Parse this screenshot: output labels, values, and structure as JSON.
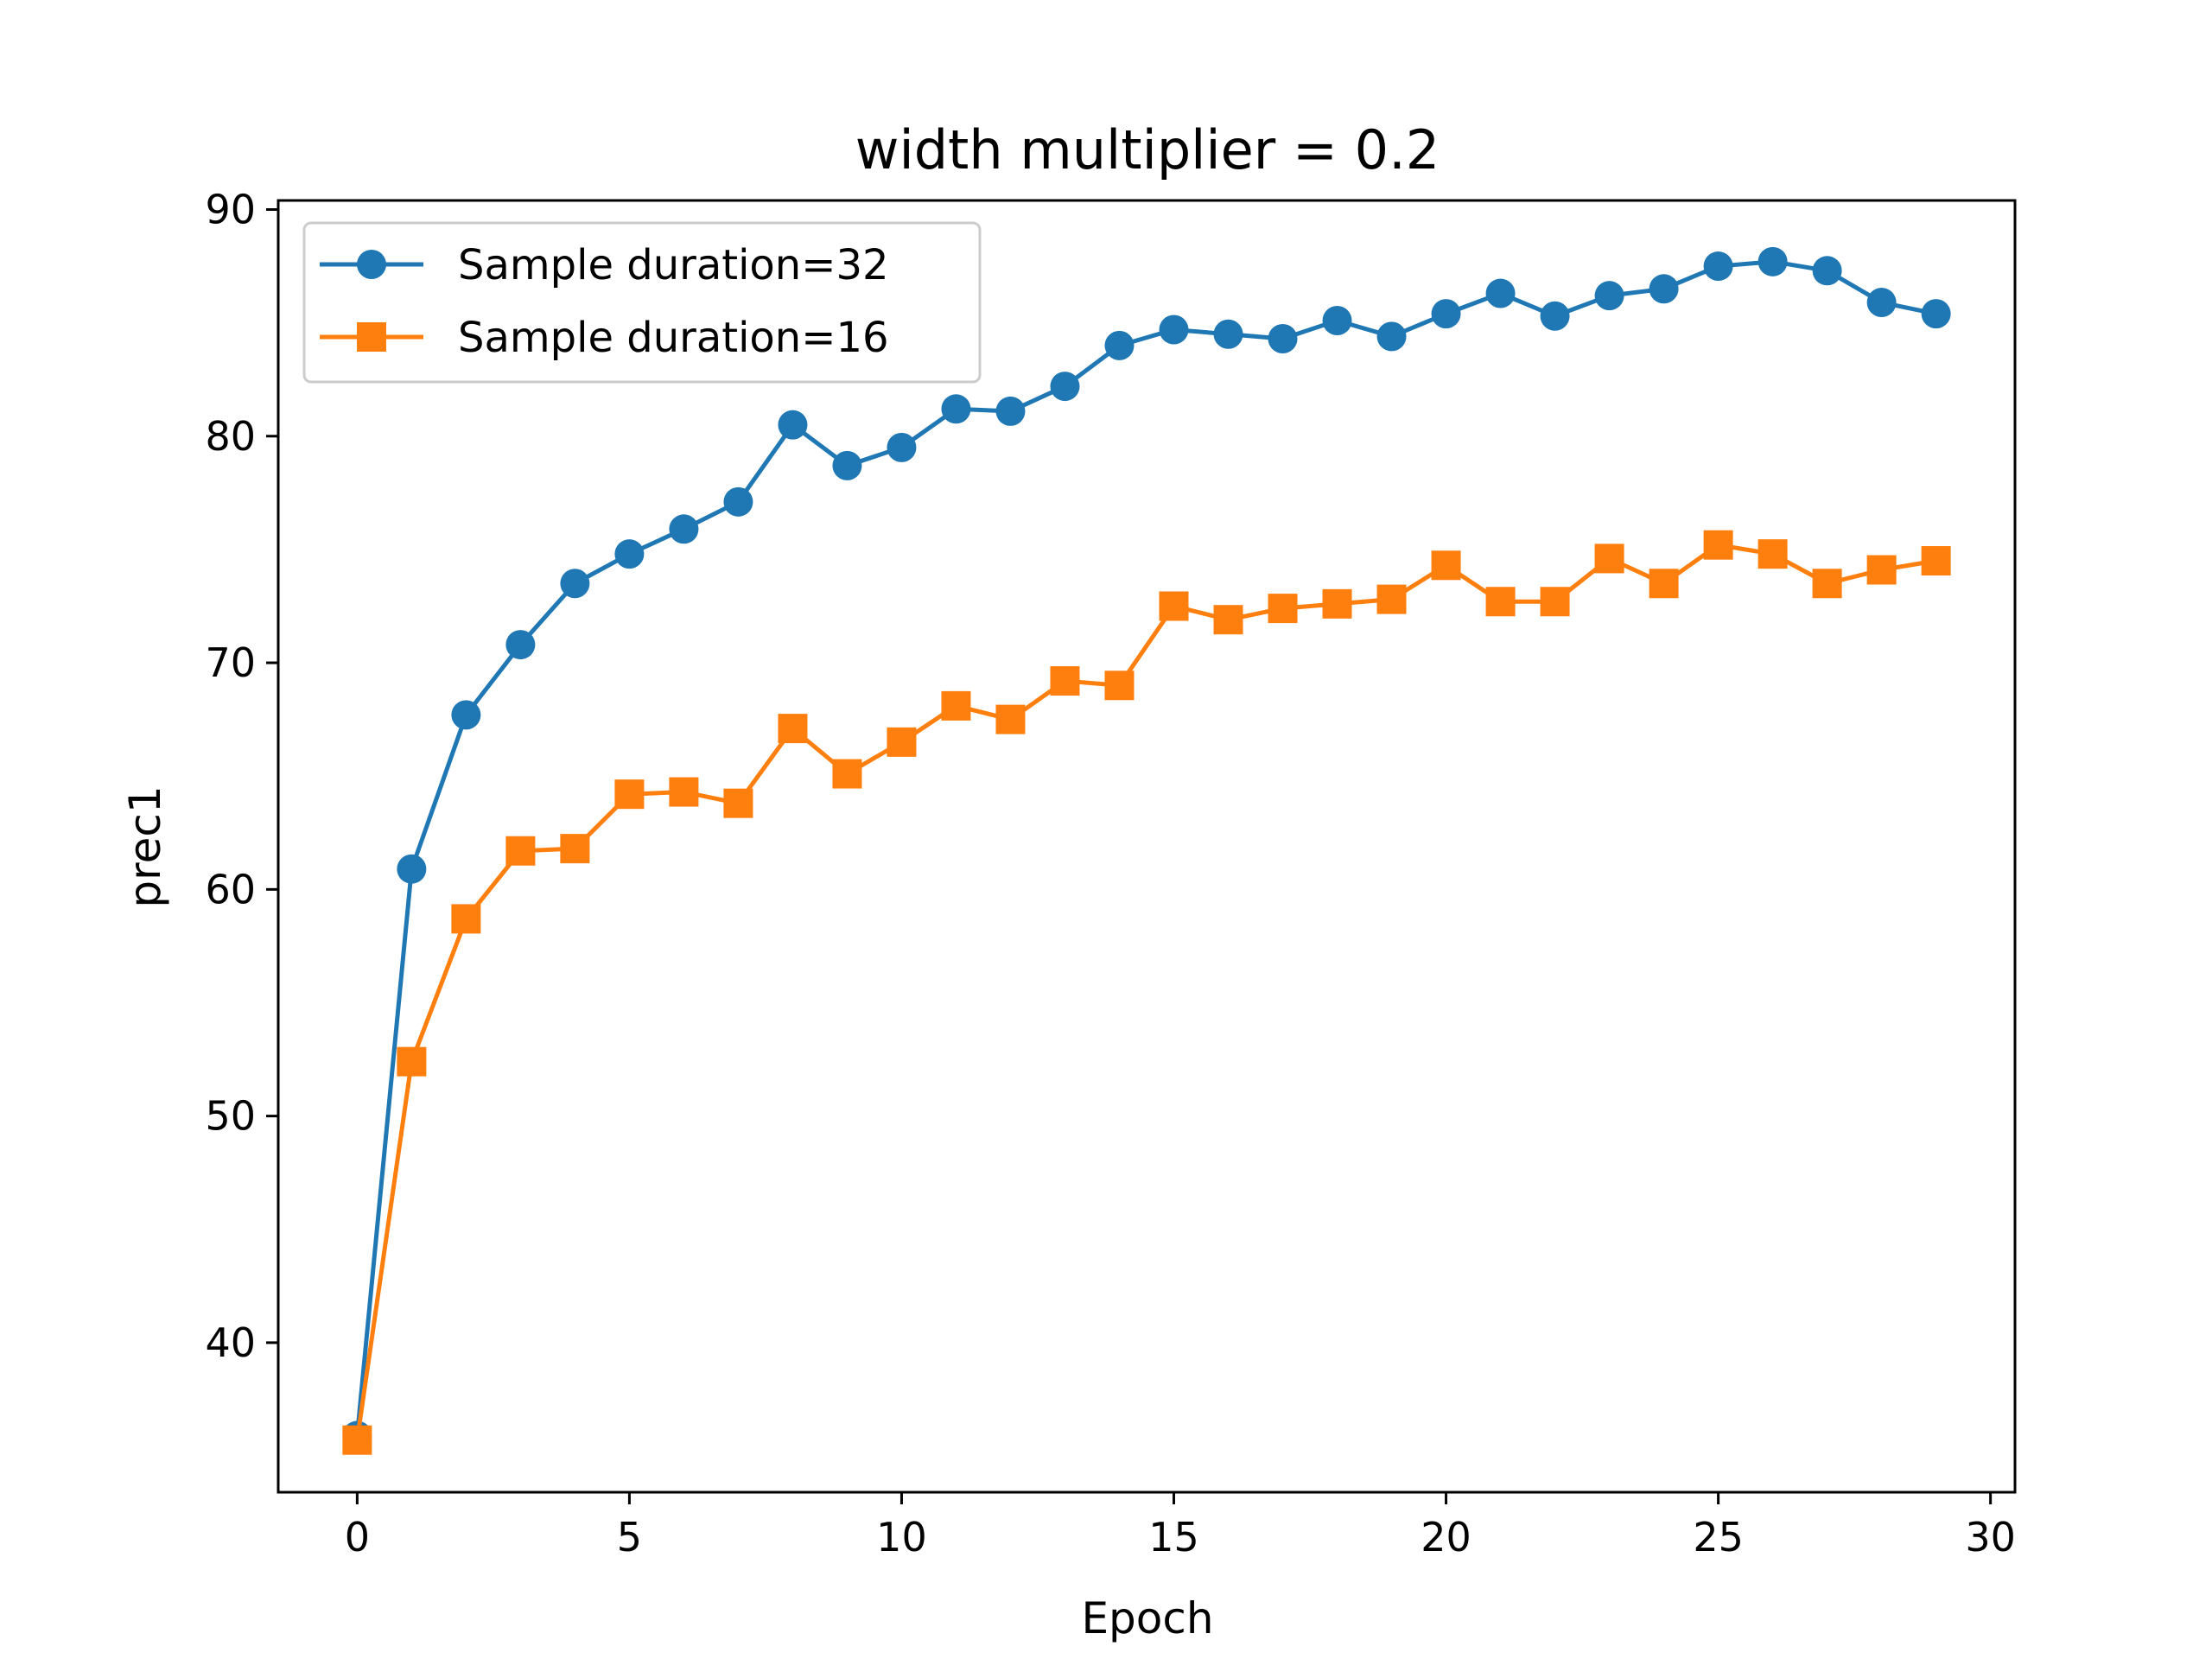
{
  "chart_data": {
    "type": "line",
    "title": "width multiplier = 0.2",
    "xlabel": "Epoch",
    "ylabel": "prec1",
    "xlim": [
      -1.45,
      30.45
    ],
    "ylim": [
      33.4,
      90.4
    ],
    "xticks": [
      0,
      5,
      10,
      15,
      20,
      25,
      30
    ],
    "yticks": [
      40,
      50,
      60,
      70,
      80,
      90
    ],
    "grid": false,
    "legend_position": "top-left",
    "x": [
      0,
      1,
      2,
      3,
      4,
      5,
      6,
      7,
      8,
      9,
      10,
      11,
      12,
      13,
      14,
      15,
      16,
      17,
      18,
      19,
      20,
      21,
      22,
      23,
      24,
      25,
      26,
      27,
      28,
      29
    ],
    "series": [
      {
        "name": "Sample duration=32",
        "color": "#1f77b4",
        "marker": "circle",
        "values": [
          35.9,
          60.9,
          67.7,
          70.8,
          73.5,
          74.8,
          75.9,
          77.1,
          80.5,
          78.7,
          79.5,
          81.2,
          81.1,
          82.2,
          84.0,
          84.7,
          84.5,
          84.3,
          85.1,
          84.4,
          85.4,
          86.3,
          85.3,
          86.2,
          86.5,
          87.5,
          87.7,
          87.3,
          85.9,
          85.4
        ]
      },
      {
        "name": "Sample duration=16",
        "color": "#ff7f0e",
        "marker": "square",
        "values": [
          35.7,
          52.4,
          58.7,
          61.7,
          61.8,
          64.2,
          64.3,
          63.8,
          67.1,
          65.1,
          66.5,
          68.1,
          67.5,
          69.2,
          69.0,
          72.5,
          71.9,
          72.4,
          72.6,
          72.8,
          74.3,
          72.7,
          72.7,
          74.6,
          73.5,
          75.2,
          74.8,
          73.5,
          74.1,
          74.5
        ]
      }
    ]
  }
}
